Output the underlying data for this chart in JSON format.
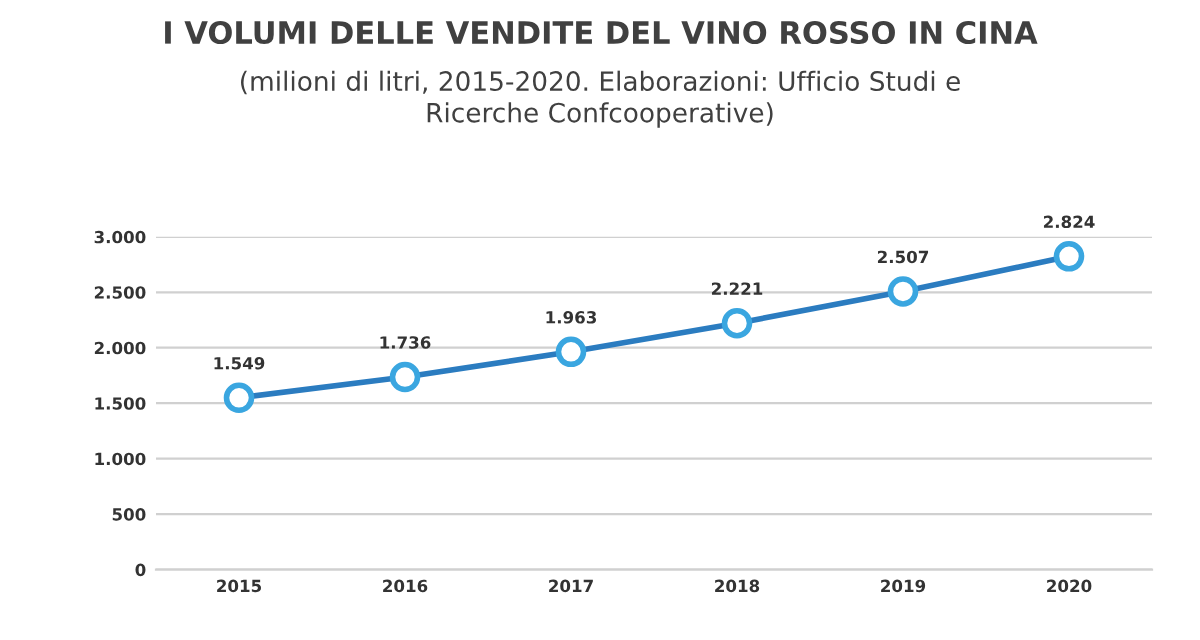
{
  "chart_data": {
    "type": "line",
    "title": "I VOLUMI DELLE VENDITE DEL VINO ROSSO IN CINA",
    "subtitle": "(milioni di litri, 2015-2020. Elaborazioni: Ufficio Studi e\nRicerche Confcooperative)",
    "categories": [
      "2015",
      "2016",
      "2017",
      "2018",
      "2019",
      "2020"
    ],
    "series": [
      {
        "color": "#2b7cc0",
        "values": [
          1549,
          1736,
          1963,
          2221,
          2507,
          2824
        ],
        "value_labels": [
          "1.549",
          "1.736",
          "1.963",
          "2.221",
          "2.507",
          "2.824"
        ]
      }
    ],
    "ylim": [
      0,
      3000
    ],
    "yticks": [
      {
        "value": 0,
        "label": "0"
      },
      {
        "value": 500,
        "label": "500"
      },
      {
        "value": 1000,
        "label": "1.000"
      },
      {
        "value": 1500,
        "label": "1.500"
      },
      {
        "value": 2000,
        "label": "2.000"
      },
      {
        "value": 2500,
        "label": "2.500"
      },
      {
        "value": 3000,
        "label": "3.000"
      }
    ],
    "grid": "y",
    "marker": "circle",
    "line_style": "solid"
  }
}
